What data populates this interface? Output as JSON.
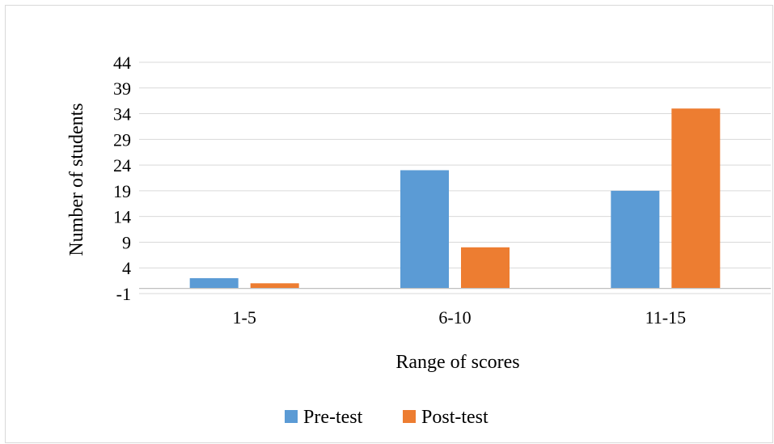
{
  "chart_data": {
    "type": "bar",
    "title": "",
    "xlabel": "Range of scores",
    "ylabel": "Number of students",
    "categories": [
      "1-5",
      "6-10",
      "11-15"
    ],
    "series": [
      {
        "name": "Pre-test",
        "values": [
          2,
          23,
          19
        ],
        "color": "#5b9bd5"
      },
      {
        "name": "Post-test",
        "values": [
          1,
          8,
          35
        ],
        "color": "#ed7d31"
      }
    ],
    "ylim": [
      -1,
      44
    ],
    "yticks": [
      -1,
      4,
      9,
      14,
      19,
      24,
      29,
      34,
      39,
      44
    ],
    "grid": true,
    "legend_position": "bottom"
  }
}
